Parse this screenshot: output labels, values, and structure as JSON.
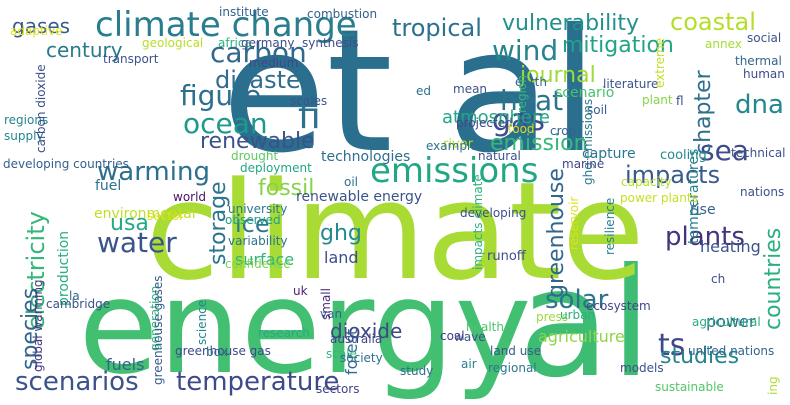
{
  "cloud": {
    "words": [
      {
        "text": "et al",
        "color": "#2a6f8e"
      },
      {
        "text": "climate",
        "color": "#a8db34"
      },
      {
        "text": "energy",
        "color": "#43bf71"
      },
      {
        "text": "al",
        "color": "#3fbc73"
      },
      {
        "text": "climate change",
        "color": "#287d8e"
      },
      {
        "text": "emissions",
        "color": "#22a785"
      },
      {
        "text": "carbon",
        "color": "#31688e"
      },
      {
        "text": "figure",
        "color": "#2e6e8e"
      },
      {
        "text": "ocean",
        "color": "#1f9a8a"
      },
      {
        "text": "fi",
        "color": "#2c728e"
      },
      {
        "text": "water",
        "color": "#3a548c"
      },
      {
        "text": "warming",
        "color": "#2d708e"
      },
      {
        "text": "scenarios",
        "color": "#3b528b"
      },
      {
        "text": "temperature",
        "color": "#3e4a89"
      },
      {
        "text": "tropical",
        "color": "#2c728e"
      },
      {
        "text": "vulnerability",
        "color": "#21918c"
      },
      {
        "text": "coastal",
        "color": "#b5de2b"
      },
      {
        "text": "wind",
        "color": "#25848e"
      },
      {
        "text": "mitigation",
        "color": "#20a386"
      },
      {
        "text": "heat",
        "color": "#2c738e"
      },
      {
        "text": "gas",
        "color": "#3d4e8a"
      },
      {
        "text": "dna",
        "color": "#23888e"
      },
      {
        "text": "impacts",
        "color": "#375a8c"
      },
      {
        "text": "disaster",
        "color": "#2f6c8e"
      },
      {
        "text": "renewable",
        "color": "#3b528b"
      },
      {
        "text": "journal",
        "color": "#a0da39"
      },
      {
        "text": "emission",
        "color": "#37b878"
      },
      {
        "text": "fossil",
        "color": "#84d44b"
      },
      {
        "text": "sea",
        "color": "#3e4c8a"
      },
      {
        "text": "plants",
        "color": "#46337e"
      },
      {
        "text": "solar",
        "color": "#2c738e"
      },
      {
        "text": "studies",
        "color": "#25858e"
      },
      {
        "text": "ts",
        "color": "#3e4989"
      },
      {
        "text": "ghg",
        "color": "#238a8d"
      },
      {
        "text": "usa",
        "color": "#23a983"
      },
      {
        "text": "ice",
        "color": "#2a788e"
      },
      {
        "text": "storage",
        "color": "#2b758e"
      },
      {
        "text": "surface",
        "color": "#2fb47c"
      },
      {
        "text": "electricity",
        "color": "#35b779"
      },
      {
        "text": "species",
        "color": "#32658e"
      },
      {
        "text": "greenhouse",
        "color": "#31668e"
      },
      {
        "text": "countries",
        "color": "#2ab07f"
      },
      {
        "text": "century",
        "color": "#29798e"
      },
      {
        "text": "gases",
        "color": "#38598c"
      },
      {
        "text": "chapter",
        "color": "#2e6f8e"
      },
      {
        "text": "atmosphere",
        "color": "#21a685"
      },
      {
        "text": "agriculture",
        "color": "#8bd646"
      },
      {
        "text": "dioxide",
        "color": "#3f4788"
      },
      {
        "text": "land",
        "color": "#3e4c8a"
      },
      {
        "text": "power",
        "color": "#32648e"
      },
      {
        "text": "heating",
        "color": "#3b528b"
      },
      {
        "text": "technologies",
        "color": "#2e6e8e"
      },
      {
        "text": "capture",
        "color": "#2a768e"
      },
      {
        "text": "fuels",
        "color": "#32648e"
      },
      {
        "text": "forest",
        "color": "#30698e"
      },
      {
        "text": "scenario",
        "color": "#48c16e"
      },
      {
        "text": "renewable energy",
        "color": "#3a538b"
      },
      {
        "text": "environmental",
        "color": "#c0df25"
      },
      {
        "text": "temperatures",
        "color": "#26828e"
      },
      {
        "text": "rise",
        "color": "#33638d"
      },
      {
        "text": "cooling",
        "color": "#238a8d"
      },
      {
        "text": "university",
        "color": "#2a788e"
      },
      {
        "text": "production",
        "color": "#29af7f"
      },
      {
        "text": "fuel",
        "color": "#2d708e"
      },
      {
        "text": "variability",
        "color": "#2b748e"
      },
      {
        "text": "confidence",
        "color": "#7fd34e"
      },
      {
        "text": "runoff",
        "color": "#3e4c8a"
      },
      {
        "text": "developing",
        "color": "#3b528b"
      },
      {
        "text": "observed",
        "color": "#1fa088"
      },
      {
        "text": "developing countries",
        "color": "#355f8d"
      },
      {
        "text": "regions",
        "color": "#24868e"
      },
      {
        "text": "supply",
        "color": "#23888e"
      },
      {
        "text": "drought",
        "color": "#5cc863"
      },
      {
        "text": "deployment",
        "color": "#22a785"
      },
      {
        "text": "natural",
        "color": "#3a548c"
      },
      {
        "text": "world",
        "color": "#471365"
      },
      {
        "text": "oil",
        "color": "#2c718e"
      },
      {
        "text": "sector",
        "color": "#d8e219"
      },
      {
        "text": "uk",
        "color": "#482475"
      },
      {
        "text": "van",
        "color": "#31668e"
      },
      {
        "text": "australia",
        "color": "#404688"
      },
      {
        "text": "research",
        "color": "#25ab82"
      },
      {
        "text": "greenhouse gas",
        "color": "#3e4a89"
      },
      {
        "text": "scale",
        "color": "#32b67a"
      },
      {
        "text": "society",
        "color": "#2c718e"
      },
      {
        "text": "sectors",
        "color": "#404387"
      },
      {
        "text": "box",
        "color": "#2e6d8e"
      },
      {
        "text": "small",
        "color": "#472c7a"
      },
      {
        "text": "coal",
        "color": "#443983"
      },
      {
        "text": "wave",
        "color": "#3a538b"
      },
      {
        "text": "air",
        "color": "#277f8e"
      },
      {
        "text": "study",
        "color": "#2d708e"
      },
      {
        "text": "regional",
        "color": "#2a768e"
      },
      {
        "text": "health",
        "color": "#4ec36b"
      },
      {
        "text": "land use",
        "color": "#38598c"
      },
      {
        "text": "press",
        "color": "#9dd93b"
      },
      {
        "text": "urban",
        "color": "#2ab07f"
      },
      {
        "text": "ecosystem",
        "color": "#3f4889"
      },
      {
        "text": "agricultural",
        "color": "#26ad81"
      },
      {
        "text": "united nations",
        "color": "#32658e"
      },
      {
        "text": "models",
        "color": "#3b528b"
      },
      {
        "text": "sustainable",
        "color": "#52c569"
      },
      {
        "text": "science",
        "color": "#24868e"
      },
      {
        "text": "generation",
        "color": "#2fb47c"
      },
      {
        "text": "cambridge",
        "color": "#3b528b"
      },
      {
        "text": "la",
        "color": "#31668e"
      },
      {
        "text": "global warming",
        "color": "#453781"
      },
      {
        "text": "greenhouse gases",
        "color": "#37598c"
      },
      {
        "text": "carbon dioxide",
        "color": "#3c4f8a"
      },
      {
        "text": "ghg emissions",
        "color": "#2a788e"
      },
      {
        "text": "impacts climate",
        "color": "#2db27d"
      },
      {
        "text": "resilience",
        "color": "#26818e"
      },
      {
        "text": "reservoir",
        "color": "#dae319"
      },
      {
        "text": "river",
        "color": "#bddf26"
      },
      {
        "text": "crop",
        "color": "#33638d"
      },
      {
        "text": "projected",
        "color": "#3f4788"
      },
      {
        "text": "food",
        "color": "#d0e11c"
      },
      {
        "text": "soil",
        "color": "#35608d"
      },
      {
        "text": "plant",
        "color": "#86d549"
      },
      {
        "text": "marine",
        "color": "#3f4889"
      },
      {
        "text": "example",
        "color": "#2d708e"
      },
      {
        "text": "scales",
        "color": "#3a548c"
      },
      {
        "text": "mean",
        "color": "#3b528b"
      },
      {
        "text": "earth",
        "color": "#31668e"
      },
      {
        "text": "region",
        "color": "#35b779"
      },
      {
        "text": "ed",
        "color": "#2c728e"
      },
      {
        "text": "literature",
        "color": "#3b528b"
      },
      {
        "text": "fl",
        "color": "#3e4c8a"
      },
      {
        "text": "human",
        "color": "#3d4d8a"
      },
      {
        "text": "thermal",
        "color": "#32648e"
      },
      {
        "text": "extreme",
        "color": "#c2df23"
      },
      {
        "text": "annex",
        "color": "#a5db36"
      },
      {
        "text": "social",
        "color": "#3b528b"
      },
      {
        "text": "institute",
        "color": "#33638d"
      },
      {
        "text": "combustion",
        "color": "#355f8d"
      },
      {
        "text": "adaptive",
        "color": "#e5e419"
      },
      {
        "text": "geological",
        "color": "#b8de29"
      },
      {
        "text": "africa",
        "color": "#2ab07f"
      },
      {
        "text": "germany",
        "color": "#3e4c8a"
      },
      {
        "text": "synthesis",
        "color": "#3d4d8a"
      },
      {
        "text": "transport",
        "color": "#3b528b"
      },
      {
        "text": "medium",
        "color": "#3f4788"
      },
      {
        "text": "technical",
        "color": "#3b528b"
      },
      {
        "text": "capacity",
        "color": "#b5de2b"
      },
      {
        "text": "power plants",
        "color": "#c8e020"
      },
      {
        "text": "nations",
        "color": "#3b528b"
      },
      {
        "text": "ch",
        "color": "#3d4e8a"
      },
      {
        "text": "ing",
        "color": "#b0dd2f"
      }
    ]
  }
}
